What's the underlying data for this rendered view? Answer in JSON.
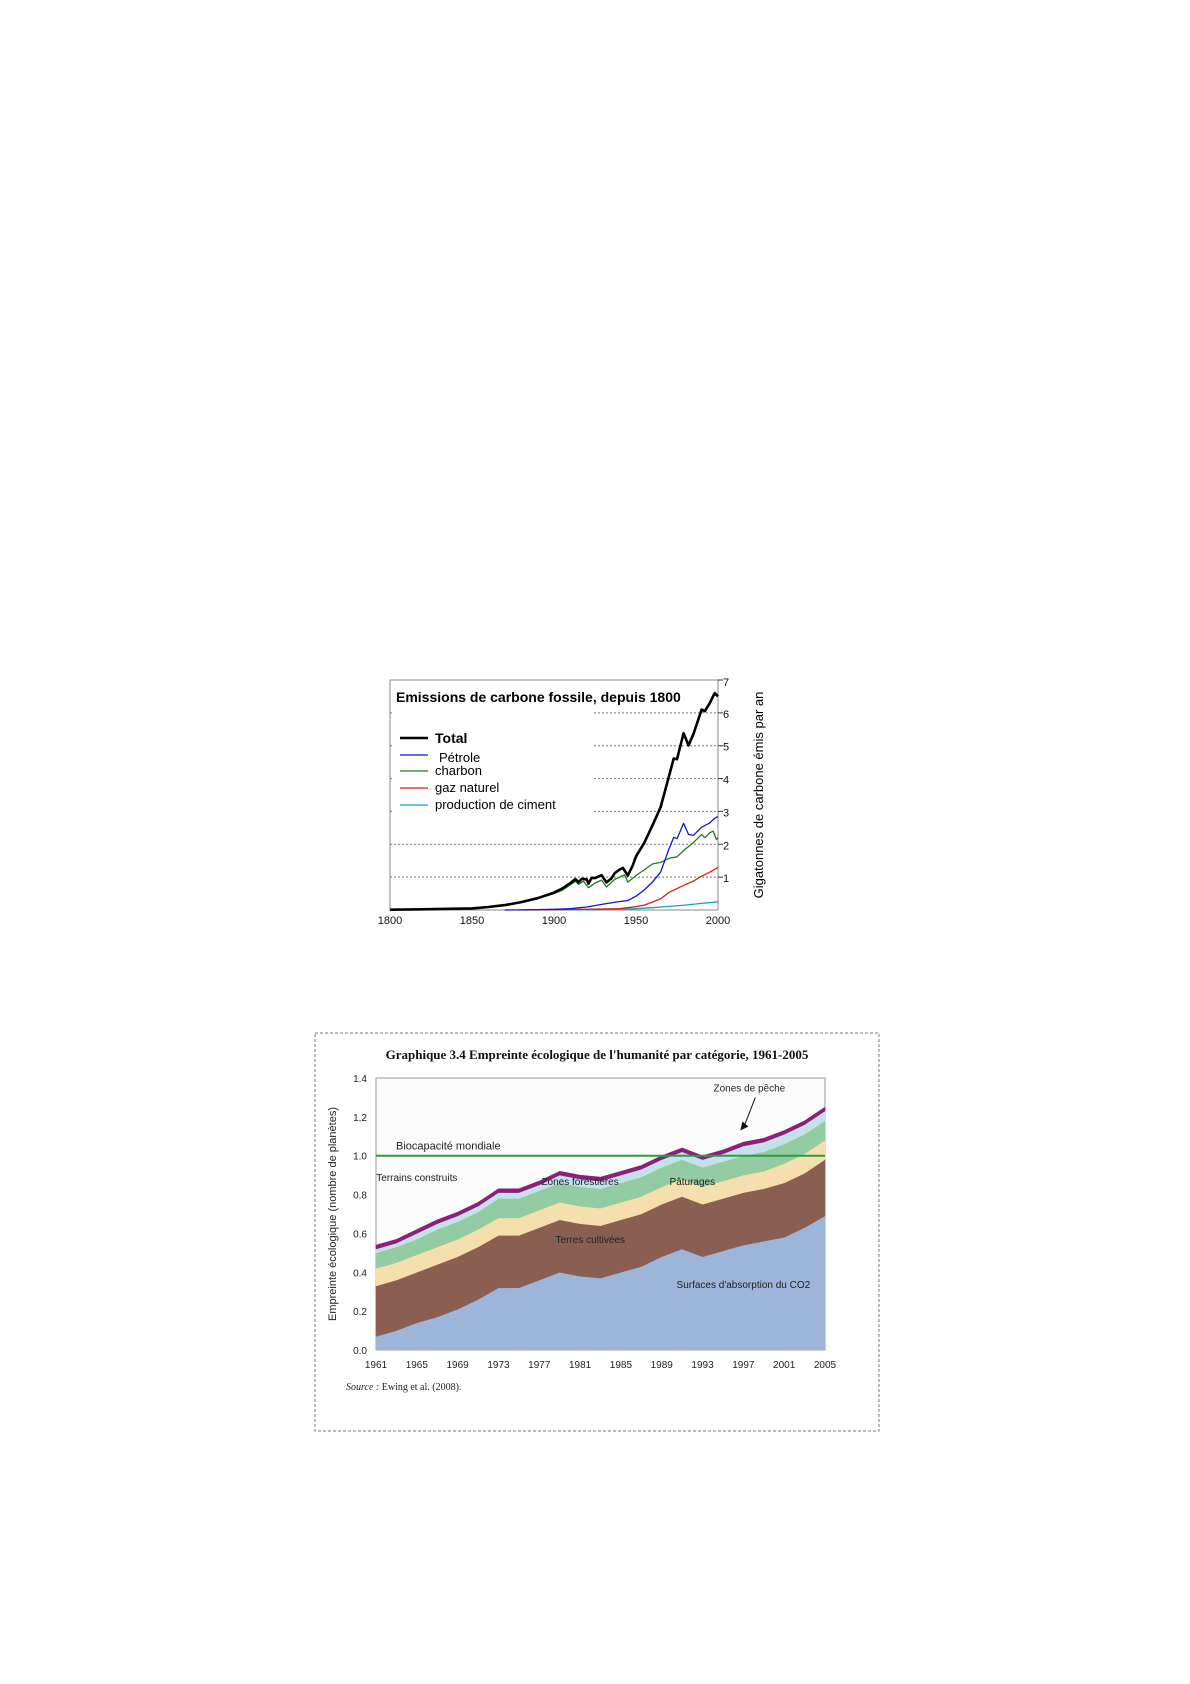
{
  "chart_data": [
    {
      "type": "line",
      "title": "Emissions de carbone fossile, depuis 1800",
      "ylabel": "Gigatonnes de carbone émis par an",
      "xlabel": "",
      "xlim": [
        1800,
        2000
      ],
      "ylim": [
        0,
        7
      ],
      "x_ticks": [
        "1800",
        "1850",
        "1900",
        "1950",
        "2000"
      ],
      "y_ticks": [
        "1",
        "2",
        "3",
        "4",
        "5",
        "6",
        "7"
      ],
      "grid": "horizontal dotted",
      "y_axis_side": "right",
      "legend_position": "top-left",
      "series": [
        {
          "name": "Total",
          "color": "#000000",
          "points": [
            [
              1800,
              0.01
            ],
            [
              1820,
              0.02
            ],
            [
              1840,
              0.04
            ],
            [
              1850,
              0.05
            ],
            [
              1860,
              0.09
            ],
            [
              1870,
              0.15
            ],
            [
              1880,
              0.24
            ],
            [
              1890,
              0.36
            ],
            [
              1900,
              0.53
            ],
            [
              1905,
              0.65
            ],
            [
              1910,
              0.82
            ],
            [
              1913,
              0.94
            ],
            [
              1915,
              0.85
            ],
            [
              1917,
              0.95
            ],
            [
              1920,
              0.93
            ],
            [
              1921,
              0.8
            ],
            [
              1923,
              0.98
            ],
            [
              1925,
              0.97
            ],
            [
              1929,
              1.06
            ],
            [
              1932,
              0.84
            ],
            [
              1935,
              0.96
            ],
            [
              1937,
              1.12
            ],
            [
              1940,
              1.23
            ],
            [
              1942,
              1.28
            ],
            [
              1945,
              1.05
            ],
            [
              1948,
              1.35
            ],
            [
              1950,
              1.63
            ],
            [
              1955,
              2.04
            ],
            [
              1960,
              2.57
            ],
            [
              1965,
              3.13
            ],
            [
              1970,
              4.05
            ],
            [
              1973,
              4.61
            ],
            [
              1975,
              4.59
            ],
            [
              1979,
              5.38
            ],
            [
              1982,
              5.01
            ],
            [
              1985,
              5.35
            ],
            [
              1990,
              6.1
            ],
            [
              1992,
              6.05
            ],
            [
              1995,
              6.3
            ],
            [
              1998,
              6.6
            ],
            [
              2000,
              6.5
            ]
          ]
        },
        {
          "name": "Pétrole",
          "color": "#1515d0",
          "points": [
            [
              1870,
              0.0
            ],
            [
              1890,
              0.01
            ],
            [
              1900,
              0.02
            ],
            [
              1910,
              0.04
            ],
            [
              1920,
              0.09
            ],
            [
              1930,
              0.18
            ],
            [
              1940,
              0.26
            ],
            [
              1945,
              0.29
            ],
            [
              1950,
              0.42
            ],
            [
              1955,
              0.61
            ],
            [
              1960,
              0.85
            ],
            [
              1965,
              1.15
            ],
            [
              1970,
              1.84
            ],
            [
              1973,
              2.21
            ],
            [
              1975,
              2.17
            ],
            [
              1979,
              2.64
            ],
            [
              1982,
              2.3
            ],
            [
              1985,
              2.27
            ],
            [
              1990,
              2.52
            ],
            [
              1995,
              2.65
            ],
            [
              1998,
              2.79
            ],
            [
              2000,
              2.85
            ]
          ]
        },
        {
          "name": "charbon",
          "color": "#1f7a1f",
          "points": [
            [
              1800,
              0.01
            ],
            [
              1820,
              0.02
            ],
            [
              1840,
              0.04
            ],
            [
              1850,
              0.05
            ],
            [
              1860,
              0.09
            ],
            [
              1870,
              0.14
            ],
            [
              1880,
              0.23
            ],
            [
              1890,
              0.34
            ],
            [
              1900,
              0.5
            ],
            [
              1905,
              0.6
            ],
            [
              1910,
              0.77
            ],
            [
              1913,
              0.87
            ],
            [
              1915,
              0.78
            ],
            [
              1918,
              0.88
            ],
            [
              1921,
              0.68
            ],
            [
              1925,
              0.82
            ],
            [
              1929,
              0.91
            ],
            [
              1932,
              0.7
            ],
            [
              1937,
              0.93
            ],
            [
              1940,
              1.0
            ],
            [
              1943,
              1.07
            ],
            [
              1945,
              0.85
            ],
            [
              1950,
              1.05
            ],
            [
              1955,
              1.22
            ],
            [
              1960,
              1.4
            ],
            [
              1965,
              1.45
            ],
            [
              1970,
              1.57
            ],
            [
              1975,
              1.62
            ],
            [
              1980,
              1.85
            ],
            [
              1985,
              2.05
            ],
            [
              1990,
              2.3
            ],
            [
              1992,
              2.2
            ],
            [
              1995,
              2.35
            ],
            [
              1997,
              2.4
            ],
            [
              1999,
              2.15
            ],
            [
              2000,
              2.2
            ]
          ]
        },
        {
          "name": "gaz naturel",
          "color": "#dd1c1c",
          "points": [
            [
              1880,
              0.0
            ],
            [
              1900,
              0.01
            ],
            [
              1920,
              0.02
            ],
            [
              1940,
              0.04
            ],
            [
              1950,
              0.1
            ],
            [
              1955,
              0.15
            ],
            [
              1960,
              0.24
            ],
            [
              1965,
              0.34
            ],
            [
              1970,
              0.53
            ],
            [
              1975,
              0.65
            ],
            [
              1980,
              0.77
            ],
            [
              1985,
              0.88
            ],
            [
              1990,
              1.03
            ],
            [
              1995,
              1.15
            ],
            [
              2000,
              1.3
            ]
          ]
        },
        {
          "name": "production de ciment",
          "color": "#10a8b0",
          "points": [
            [
              1900,
              0.0
            ],
            [
              1920,
              0.01
            ],
            [
              1940,
              0.02
            ],
            [
              1950,
              0.04
            ],
            [
              1960,
              0.07
            ],
            [
              1970,
              0.11
            ],
            [
              1980,
              0.15
            ],
            [
              1990,
              0.2
            ],
            [
              2000,
              0.25
            ]
          ]
        }
      ]
    },
    {
      "type": "area",
      "title": "Graphique 3.4 Empreinte écologique de l'humanité par catégorie, 1961-2005",
      "ylabel": "Empreinte écologique (nombre de planètes)",
      "xlabel": "",
      "ylim": [
        0,
        1.4
      ],
      "x_ticks": [
        "1961",
        "1965",
        "1969",
        "1973",
        "1977",
        "1981",
        "1985",
        "1989",
        "1993",
        "1997",
        "2001",
        "2005"
      ],
      "y_ticks": [
        "0.0",
        "0.2",
        "0.4",
        "0.6",
        "0.8",
        "1.0",
        "1.2",
        "1.4"
      ],
      "source_label": "Source :",
      "source_text": " Ewing et al. (2008).",
      "reference_line": {
        "label": "Biocapacité mondiale",
        "value": 1.0,
        "color": "#2f9a44"
      },
      "callout": {
        "label": "Zones de pêche",
        "target_year": 1997,
        "target_value": 1.14
      },
      "years": [
        1961,
        1963,
        1965,
        1967,
        1969,
        1971,
        1973,
        1975,
        1977,
        1979,
        1981,
        1983,
        1985,
        1987,
        1989,
        1991,
        1993,
        1995,
        1997,
        1999,
        2001,
        2003,
        2005
      ],
      "series": [
        {
          "name": "Surfaces d'absorption du CO2",
          "color": "#9db5d9",
          "label_year": 1997,
          "label_value": 0.32,
          "values": [
            0.07,
            0.1,
            0.14,
            0.17,
            0.21,
            0.26,
            0.32,
            0.32,
            0.36,
            0.4,
            0.38,
            0.37,
            0.4,
            0.43,
            0.48,
            0.52,
            0.48,
            0.51,
            0.54,
            0.56,
            0.58,
            0.63,
            0.69
          ]
        },
        {
          "name": "Terres cultivées",
          "color": "#8a5e51",
          "label_year": 1982,
          "label_value": 0.55,
          "values": [
            0.26,
            0.26,
            0.26,
            0.27,
            0.27,
            0.27,
            0.27,
            0.27,
            0.27,
            0.27,
            0.27,
            0.27,
            0.27,
            0.27,
            0.27,
            0.27,
            0.27,
            0.27,
            0.27,
            0.27,
            0.28,
            0.28,
            0.29
          ]
        },
        {
          "name": "Pâturages",
          "color": "#f4dfad",
          "label_year": 1992,
          "label_value": 0.85,
          "values": [
            0.09,
            0.09,
            0.09,
            0.09,
            0.09,
            0.09,
            0.09,
            0.09,
            0.09,
            0.09,
            0.09,
            0.09,
            0.09,
            0.09,
            0.09,
            0.09,
            0.09,
            0.09,
            0.09,
            0.09,
            0.1,
            0.1,
            0.1
          ]
        },
        {
          "name": "Zones forestières",
          "color": "#93cba2",
          "label_year": 1981,
          "label_value": 0.85,
          "values": [
            0.08,
            0.08,
            0.08,
            0.09,
            0.09,
            0.09,
            0.1,
            0.1,
            0.1,
            0.1,
            0.1,
            0.1,
            0.1,
            0.1,
            0.1,
            0.1,
            0.1,
            0.1,
            0.1,
            0.1,
            0.1,
            0.1,
            0.1
          ]
        },
        {
          "name": "Terrains construits",
          "color": "#c2e1e8",
          "label_year": 1965,
          "label_value": 0.87,
          "values": [
            0.02,
            0.02,
            0.03,
            0.03,
            0.03,
            0.03,
            0.03,
            0.03,
            0.03,
            0.04,
            0.04,
            0.04,
            0.04,
            0.04,
            0.04,
            0.04,
            0.04,
            0.04,
            0.05,
            0.05,
            0.05,
            0.05,
            0.05
          ]
        },
        {
          "name": "Zones de pêche",
          "color": "#8b1f7a",
          "values": [
            0.02,
            0.02,
            0.02,
            0.02,
            0.02,
            0.02,
            0.02,
            0.02,
            0.02,
            0.02,
            0.02,
            0.02,
            0.02,
            0.02,
            0.02,
            0.02,
            0.02,
            0.02,
            0.02,
            0.02,
            0.02,
            0.02,
            0.02
          ]
        }
      ]
    }
  ]
}
